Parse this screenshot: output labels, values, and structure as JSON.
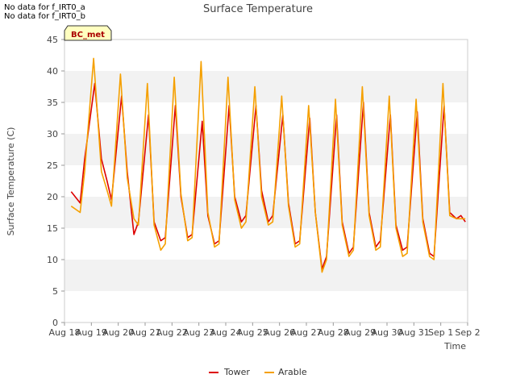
{
  "notes": [
    "No data for f_IRT0_a",
    "No data for f_IRT0_b"
  ],
  "badge": "BC_met",
  "chart_data": {
    "type": "line",
    "title": "Surface Temperature",
    "xlabel": "Time",
    "ylabel": "Surface Temperature (C)",
    "ylim": [
      0,
      45
    ],
    "yticks": [
      0,
      5,
      10,
      15,
      20,
      25,
      30,
      35,
      40,
      45
    ],
    "xlim": [
      "2024-08-18",
      "2024-09-02"
    ],
    "xtick_labels": [
      "Aug 18",
      "Aug 19",
      "Aug 20",
      "Aug 21",
      "Aug 22",
      "Aug 23",
      "Aug 24",
      "Aug 25",
      "Aug 26",
      "Aug 27",
      "Aug 28",
      "Aug 29",
      "Aug 30",
      "Aug 31",
      "Sep 1",
      "Sep 2"
    ],
    "grid": "horizontal bands",
    "legend_position": "bottom",
    "series": [
      {
        "name": "Tower",
        "color": "#dd0000",
        "x": [
          "2024-08-18 06:00",
          "2024-08-18 14:00",
          "2024-08-18 18:00",
          "2024-08-19 03:00",
          "2024-08-19 09:00",
          "2024-08-19 14:00",
          "2024-08-19 18:00",
          "2024-08-20 03:00",
          "2024-08-20 08:00",
          "2024-08-20 14:00",
          "2024-08-20 18:00",
          "2024-08-21 03:00",
          "2024-08-21 08:00",
          "2024-08-21 14:00",
          "2024-08-21 18:00",
          "2024-08-22 03:00",
          "2024-08-22 08:00",
          "2024-08-22 14:00",
          "2024-08-22 18:00",
          "2024-08-23 03:00",
          "2024-08-23 08:00",
          "2024-08-23 14:00",
          "2024-08-23 18:00",
          "2024-08-24 03:00",
          "2024-08-24 08:00",
          "2024-08-24 14:00",
          "2024-08-24 18:00",
          "2024-08-25 03:00",
          "2024-08-25 08:00",
          "2024-08-25 14:00",
          "2024-08-25 18:00",
          "2024-08-26 03:00",
          "2024-08-26 08:00",
          "2024-08-26 14:00",
          "2024-08-26 18:00",
          "2024-08-27 03:00",
          "2024-08-27 08:00",
          "2024-08-27 14:00",
          "2024-08-27 18:00",
          "2024-08-28 03:00",
          "2024-08-28 08:00",
          "2024-08-28 14:00",
          "2024-08-28 18:00",
          "2024-08-29 03:00",
          "2024-08-29 08:00",
          "2024-08-29 14:00",
          "2024-08-29 18:00",
          "2024-08-30 03:00",
          "2024-08-30 08:00",
          "2024-08-30 14:00",
          "2024-08-30 18:00",
          "2024-08-31 03:00",
          "2024-08-31 08:00",
          "2024-08-31 14:00",
          "2024-08-31 18:00",
          "2024-09-01 03:00",
          "2024-09-01 08:00",
          "2024-09-01 14:00",
          "2024-09-01 18:00",
          "2024-09-01 22:00"
        ],
        "values": [
          20.8,
          19.0,
          26.0,
          38.0,
          26.0,
          22.5,
          19.5,
          36.0,
          24.0,
          14.0,
          16.0,
          33.0,
          16.0,
          13.0,
          13.5,
          34.5,
          20.0,
          13.5,
          14.0,
          32.0,
          17.0,
          12.5,
          13.0,
          34.5,
          20.0,
          16.0,
          17.0,
          34.5,
          21.0,
          16.0,
          17.0,
          33.0,
          19.0,
          12.5,
          13.0,
          32.5,
          17.5,
          8.5,
          10.5,
          33.0,
          16.0,
          11.0,
          12.0,
          35.0,
          17.5,
          12.0,
          13.0,
          33.0,
          15.5,
          11.5,
          12.0,
          33.5,
          16.5,
          11.0,
          10.5,
          34.5,
          17.5,
          16.5,
          17.0,
          16.0
        ]
      },
      {
        "name": "Arable",
        "color": "#f5a000",
        "x": [
          "2024-08-18 06:00",
          "2024-08-18 14:00",
          "2024-08-18 18:00",
          "2024-08-19 02:00",
          "2024-08-19 09:00",
          "2024-08-19 14:00",
          "2024-08-19 18:00",
          "2024-08-20 02:00",
          "2024-08-20 08:00",
          "2024-08-20 14:00",
          "2024-08-20 18:00",
          "2024-08-21 02:00",
          "2024-08-21 08:00",
          "2024-08-21 14:00",
          "2024-08-21 18:00",
          "2024-08-22 02:00",
          "2024-08-22 08:00",
          "2024-08-22 14:00",
          "2024-08-22 18:00",
          "2024-08-23 02:00",
          "2024-08-23 08:00",
          "2024-08-23 14:00",
          "2024-08-23 18:00",
          "2024-08-24 02:00",
          "2024-08-24 08:00",
          "2024-08-24 14:00",
          "2024-08-24 18:00",
          "2024-08-25 02:00",
          "2024-08-25 08:00",
          "2024-08-25 14:00",
          "2024-08-25 18:00",
          "2024-08-26 02:00",
          "2024-08-26 08:00",
          "2024-08-26 14:00",
          "2024-08-26 18:00",
          "2024-08-27 02:00",
          "2024-08-27 08:00",
          "2024-08-27 14:00",
          "2024-08-27 18:00",
          "2024-08-28 02:00",
          "2024-08-28 08:00",
          "2024-08-28 14:00",
          "2024-08-28 18:00",
          "2024-08-29 02:00",
          "2024-08-29 08:00",
          "2024-08-29 14:00",
          "2024-08-29 18:00",
          "2024-08-30 02:00",
          "2024-08-30 08:00",
          "2024-08-30 14:00",
          "2024-08-30 18:00",
          "2024-08-31 02:00",
          "2024-08-31 08:00",
          "2024-08-31 14:00",
          "2024-08-31 18:00",
          "2024-09-01 02:00",
          "2024-09-01 08:00",
          "2024-09-01 14:00",
          "2024-09-01 18:00",
          "2024-09-01 22:00"
        ],
        "values": [
          18.5,
          17.5,
          24.0,
          42.0,
          24.0,
          21.0,
          18.5,
          39.5,
          23.0,
          16.5,
          15.5,
          38.0,
          15.5,
          11.5,
          12.5,
          39.0,
          20.5,
          13.0,
          13.5,
          41.5,
          17.5,
          12.0,
          12.5,
          39.0,
          19.5,
          15.0,
          16.0,
          37.5,
          20.0,
          15.5,
          16.0,
          36.0,
          18.5,
          12.0,
          12.5,
          34.5,
          17.5,
          8.0,
          10.0,
          35.5,
          15.5,
          10.5,
          11.5,
          37.5,
          17.0,
          11.5,
          12.0,
          36.0,
          15.0,
          10.5,
          11.0,
          35.5,
          16.0,
          10.5,
          10.0,
          38.0,
          17.0,
          16.5,
          16.5,
          16.5
        ]
      }
    ]
  }
}
